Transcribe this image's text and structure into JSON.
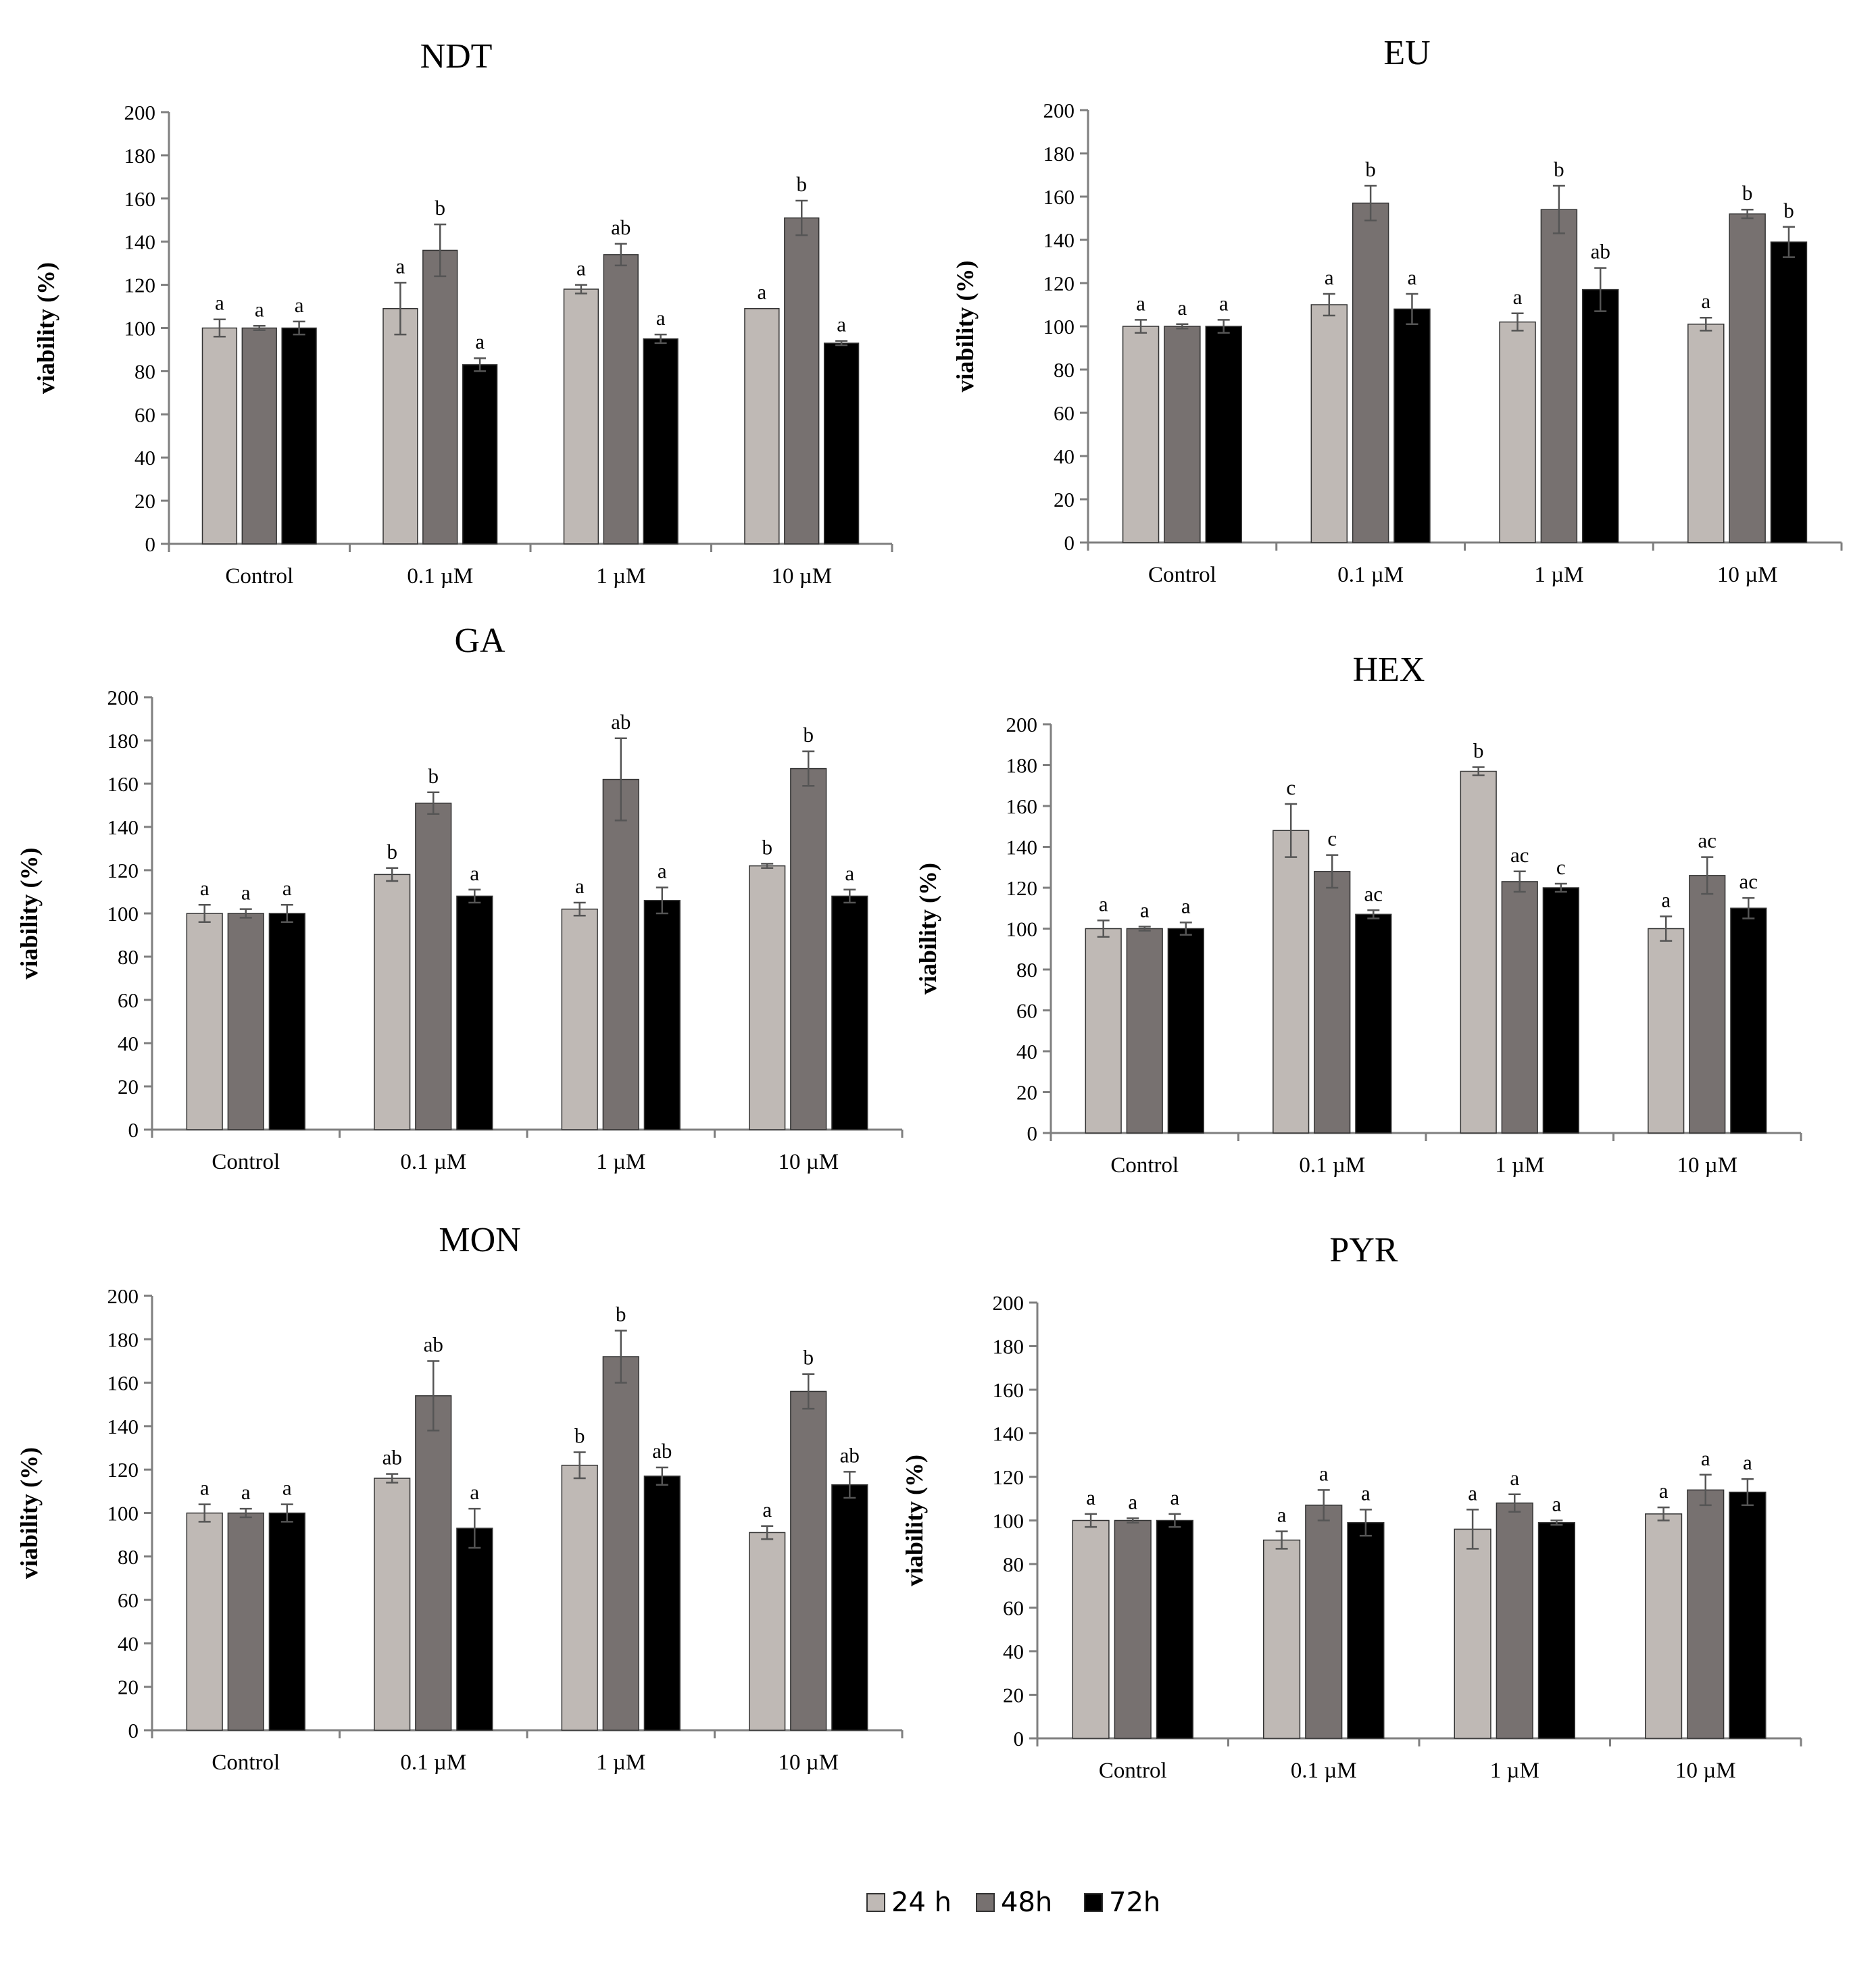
{
  "colors": {
    "series_24h": "#bfb9b5",
    "series_48h": "#777170",
    "series_72h": "#000000",
    "axis": "#7f7f7f",
    "error_bar": "#555555"
  },
  "legend": {
    "items": [
      "24 h",
      "48h",
      "72h"
    ]
  },
  "chart_data": [
    {
      "type": "bar",
      "title": "NDT",
      "ylabel": "viability  (%)",
      "ylim": [
        0,
        200
      ],
      "yticks": [
        0,
        20,
        40,
        60,
        80,
        100,
        120,
        140,
        160,
        180,
        200
      ],
      "categories": [
        "Control",
        "0.1 µM",
        "1 µM",
        "10 µM"
      ],
      "series": [
        {
          "name": "24 h",
          "values": [
            100,
            109,
            118,
            109
          ],
          "errors": [
            4,
            12,
            2,
            0
          ],
          "labels": [
            "a",
            "a",
            "a",
            "a"
          ]
        },
        {
          "name": "48h",
          "values": [
            100,
            136,
            134,
            151
          ],
          "errors": [
            1,
            12,
            5,
            8
          ],
          "labels": [
            "a",
            "b",
            "ab",
            "b"
          ]
        },
        {
          "name": "72h",
          "values": [
            100,
            83,
            95,
            93
          ],
          "errors": [
            3,
            3,
            2,
            1
          ],
          "labels": [
            "a",
            "a",
            "a",
            "a"
          ]
        }
      ]
    },
    {
      "type": "bar",
      "title": "EU",
      "ylabel": "viability  (%)",
      "ylim": [
        0,
        200
      ],
      "yticks": [
        0,
        20,
        40,
        60,
        80,
        100,
        120,
        140,
        160,
        180,
        200
      ],
      "categories": [
        "Control",
        "0.1 µM",
        "1 µM",
        "10 µM"
      ],
      "series": [
        {
          "name": "24 h",
          "values": [
            100,
            110,
            102,
            101
          ],
          "errors": [
            3,
            5,
            4,
            3
          ],
          "labels": [
            "a",
            "a",
            "a",
            "a"
          ]
        },
        {
          "name": "48h",
          "values": [
            100,
            157,
            154,
            152
          ],
          "errors": [
            1,
            8,
            11,
            2
          ],
          "labels": [
            "a",
            "b",
            "b",
            "b"
          ]
        },
        {
          "name": "72h",
          "values": [
            100,
            108,
            117,
            139
          ],
          "errors": [
            3,
            7,
            10,
            7
          ],
          "labels": [
            "a",
            "a",
            "ab",
            "b"
          ]
        }
      ]
    },
    {
      "type": "bar",
      "title": "GA",
      "ylabel": "viability  (%)",
      "ylim": [
        0,
        200
      ],
      "yticks": [
        0,
        20,
        40,
        60,
        80,
        100,
        120,
        140,
        160,
        180,
        200
      ],
      "categories": [
        "Control",
        "0.1 µM",
        "1 µM",
        "10 µM"
      ],
      "series": [
        {
          "name": "24 h",
          "values": [
            100,
            118,
            102,
            122
          ],
          "errors": [
            4,
            3,
            3,
            1
          ],
          "labels": [
            "a",
            "b",
            "a",
            "b"
          ]
        },
        {
          "name": "48h",
          "values": [
            100,
            151,
            162,
            167
          ],
          "errors": [
            2,
            5,
            19,
            8
          ],
          "labels": [
            "a",
            "b",
            "ab",
            "b"
          ]
        },
        {
          "name": "72h",
          "values": [
            100,
            108,
            106,
            108
          ],
          "errors": [
            4,
            3,
            6,
            3
          ],
          "labels": [
            "a",
            "a",
            "a",
            "a"
          ]
        }
      ]
    },
    {
      "type": "bar",
      "title": "HEX",
      "ylabel": "viability  (%)",
      "ylim": [
        0,
        200
      ],
      "yticks": [
        0,
        20,
        40,
        60,
        80,
        100,
        120,
        140,
        160,
        180,
        200
      ],
      "categories": [
        "Control",
        "0.1 µM",
        "1 µM",
        "10 µM"
      ],
      "series": [
        {
          "name": "24 h",
          "values": [
            100,
            148,
            177,
            100
          ],
          "errors": [
            4,
            13,
            2,
            6
          ],
          "labels": [
            "a",
            "c",
            "b",
            "a"
          ]
        },
        {
          "name": "48h",
          "values": [
            100,
            128,
            123,
            126
          ],
          "errors": [
            1,
            8,
            5,
            9
          ],
          "labels": [
            "a",
            "c",
            "ac",
            "ac"
          ]
        },
        {
          "name": "72h",
          "values": [
            100,
            107,
            120,
            110
          ],
          "errors": [
            3,
            2,
            2,
            5
          ],
          "labels": [
            "a",
            "ac",
            "c",
            "ac"
          ]
        }
      ]
    },
    {
      "type": "bar",
      "title": "MON",
      "ylabel": "viability  (%)",
      "ylim": [
        0,
        200
      ],
      "yticks": [
        0,
        20,
        40,
        60,
        80,
        100,
        120,
        140,
        160,
        180,
        200
      ],
      "categories": [
        "Control",
        "0.1 µM",
        "1 µM",
        "10 µM"
      ],
      "series": [
        {
          "name": "24 h",
          "values": [
            100,
            116,
            122,
            91
          ],
          "errors": [
            4,
            2,
            6,
            3
          ],
          "labels": [
            "a",
            "ab",
            "b",
            "a"
          ]
        },
        {
          "name": "48h",
          "values": [
            100,
            154,
            172,
            156
          ],
          "errors": [
            2,
            16,
            12,
            8
          ],
          "labels": [
            "a",
            "ab",
            "b",
            "b"
          ]
        },
        {
          "name": "72h",
          "values": [
            100,
            93,
            117,
            113
          ],
          "errors": [
            4,
            9,
            4,
            6
          ],
          "labels": [
            "a",
            "a",
            "ab",
            "ab"
          ]
        }
      ]
    },
    {
      "type": "bar",
      "title": "PYR",
      "ylabel": "viability  (%)",
      "ylim": [
        0,
        200
      ],
      "yticks": [
        0,
        20,
        40,
        60,
        80,
        100,
        120,
        140,
        160,
        180,
        200
      ],
      "categories": [
        "Control",
        "0.1 µM",
        "1 µM",
        "10 µM"
      ],
      "series": [
        {
          "name": "24 h",
          "values": [
            100,
            91,
            96,
            103
          ],
          "errors": [
            3,
            4,
            9,
            3
          ],
          "labels": [
            "a",
            "a",
            "a",
            "a"
          ]
        },
        {
          "name": "48h",
          "values": [
            100,
            107,
            108,
            114
          ],
          "errors": [
            1,
            7,
            4,
            7
          ],
          "labels": [
            "a",
            "a",
            "a",
            "a"
          ]
        },
        {
          "name": "72h",
          "values": [
            100,
            99,
            99,
            113
          ],
          "errors": [
            3,
            6,
            1,
            6
          ],
          "labels": [
            "a",
            "a",
            "a",
            "a"
          ]
        }
      ]
    }
  ]
}
